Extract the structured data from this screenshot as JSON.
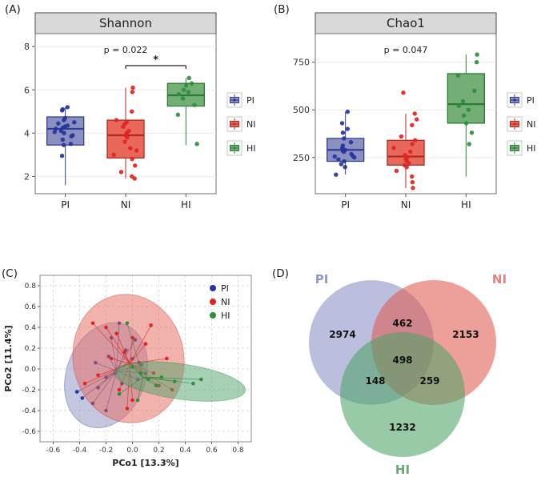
{
  "panels": {
    "A": {
      "label": "(A)"
    },
    "B": {
      "label": "(B)"
    },
    "C": {
      "label": "(C)"
    },
    "D": {
      "label": "(D)"
    }
  },
  "legend": {
    "items": [
      {
        "key": "PI",
        "label": "PI"
      },
      {
        "key": "NI",
        "label": "NI"
      },
      {
        "key": "HI",
        "label": "HI"
      }
    ]
  },
  "colors": {
    "PI": {
      "fill": "#8b90c1",
      "stroke": "#2f3e93",
      "point": "#26349c",
      "label": "#9197ca",
      "venn": "#8a90c4"
    },
    "NI": {
      "fill": "#e8685c",
      "stroke": "#b3281e",
      "point": "#e02421",
      "label": "#e0837c",
      "venn": "#e05a50"
    },
    "HI": {
      "fill": "#74ae77",
      "stroke": "#2b7c34",
      "point": "#2f8d3e",
      "label": "#6aa87b",
      "venn": "#4fa369"
    },
    "strip_bg": "#d9d9d9",
    "panel_border": "#6e6e6e",
    "grid": "#ececec"
  },
  "chart_data": [
    {
      "id": "A",
      "type": "box",
      "title": "Shannon",
      "p_text": "p = 0.022",
      "significance": {
        "from": "NI",
        "to": "HI",
        "label": "*"
      },
      "categories": [
        "PI",
        "NI",
        "HI"
      ],
      "ylim": [
        1.2,
        8.6
      ],
      "y_ticks": [
        2,
        4,
        6,
        8
      ],
      "stats": {
        "PI": {
          "whisker_low": 1.6,
          "q1": 3.45,
          "median": 4.2,
          "q3": 4.75,
          "whisker_high": 5.2
        },
        "NI": {
          "whisker_low": 1.9,
          "q1": 2.85,
          "median": 3.9,
          "q3": 4.6,
          "whisker_high": 6.1
        },
        "HI": {
          "whisker_low": 3.45,
          "q1": 5.25,
          "median": 5.75,
          "q3": 6.3,
          "whisker_high": 6.55
        }
      },
      "points": {
        "PI": [
          4.2,
          4.3,
          4.1,
          4.0,
          4.45,
          4.5,
          3.9,
          3.85,
          4.6,
          4.7,
          5.05,
          5.1,
          3.5,
          3.45,
          4.25,
          5.2,
          2.95,
          4.35,
          4.05,
          3.7
        ],
        "NI": [
          6.1,
          5.9,
          5.0,
          4.6,
          4.5,
          4.4,
          4.1,
          4.0,
          3.9,
          3.8,
          3.6,
          3.3,
          3.0,
          2.8,
          2.5,
          2.2,
          2.0,
          1.9,
          4.3,
          3.2
        ],
        "HI": [
          6.55,
          6.3,
          6.2,
          6.0,
          5.9,
          5.8,
          5.6,
          5.3,
          4.85,
          3.5
        ]
      }
    },
    {
      "id": "B",
      "type": "box",
      "title": "Chao1",
      "p_text": "p = 0.047",
      "significance": null,
      "categories": [
        "PI",
        "NI",
        "HI"
      ],
      "ylim": [
        60,
        900
      ],
      "y_ticks": [
        250,
        500,
        750
      ],
      "stats": {
        "PI": {
          "whisker_low": 160,
          "q1": 230,
          "median": 290,
          "q3": 350,
          "whisker_high": 490
        },
        "NI": {
          "whisker_low": 90,
          "q1": 210,
          "median": 255,
          "q3": 340,
          "whisker_high": 480
        },
        "HI": {
          "whisker_low": 150,
          "q1": 430,
          "median": 530,
          "q3": 690,
          "whisker_high": 790
        }
      },
      "points": {
        "PI": [
          160,
          200,
          215,
          230,
          240,
          250,
          258,
          268,
          280,
          290,
          300,
          312,
          330,
          350,
          380,
          400,
          430,
          490,
          255,
          285
        ],
        "NI": [
          90,
          120,
          150,
          180,
          200,
          210,
          220,
          232,
          242,
          252,
          262,
          280,
          300,
          320,
          340,
          360,
          420,
          480,
          590,
          450
        ],
        "HI": [
          320,
          380,
          430,
          470,
          500,
          520,
          545,
          600,
          680,
          790,
          750
        ]
      }
    },
    {
      "id": "C",
      "type": "scatter",
      "xlabel": "PCo1 [13.3%]",
      "ylabel": "PCo2 [11.4%]",
      "xlim": [
        -0.7,
        0.9
      ],
      "ylim": [
        -0.7,
        0.9
      ],
      "x_ticks": [
        -0.6,
        -0.4,
        -0.2,
        0.0,
        0.2,
        0.4,
        0.6,
        0.8
      ],
      "y_ticks": [
        -0.6,
        -0.4,
        -0.2,
        0.0,
        0.2,
        0.4,
        0.6,
        0.8
      ],
      "groups": [
        {
          "name": "PI",
          "centroid": [
            -0.12,
            -0.02
          ],
          "ellipse": {
            "cx": -0.2,
            "cy": -0.06,
            "rx": 0.3,
            "ry": 0.52,
            "angle": 20
          },
          "points": [
            [
              -0.38,
              -0.28
            ],
            [
              -0.3,
              -0.33
            ],
            [
              -0.26,
              -0.18
            ],
            [
              -0.2,
              -0.08
            ],
            [
              -0.28,
              0.06
            ],
            [
              -0.16,
              0.3
            ],
            [
              -0.1,
              0.44
            ],
            [
              -0.05,
              0.18
            ],
            [
              0.0,
              0.1
            ],
            [
              -0.13,
              -0.04
            ],
            [
              -0.08,
              -0.14
            ],
            [
              0.04,
              -0.1
            ],
            [
              0.1,
              -0.04
            ],
            [
              -0.42,
              -0.22
            ],
            [
              -0.18,
              0.12
            ],
            [
              0.02,
              0.28
            ],
            [
              -0.2,
              -0.4
            ],
            [
              0.07,
              0.04
            ]
          ]
        },
        {
          "name": "NI",
          "centroid": [
            -0.02,
            0.05
          ],
          "ellipse": {
            "cx": -0.03,
            "cy": 0.1,
            "rx": 0.42,
            "ry": 0.62,
            "angle": -10
          },
          "points": [
            [
              -0.3,
              0.44
            ],
            [
              -0.2,
              0.4
            ],
            [
              -0.12,
              0.34
            ],
            [
              0.0,
              0.3
            ],
            [
              0.1,
              0.24
            ],
            [
              -0.06,
              0.16
            ],
            [
              -0.16,
              0.1
            ],
            [
              0.05,
              0.06
            ],
            [
              0.16,
              -0.04
            ],
            [
              0.2,
              -0.16
            ],
            [
              -0.26,
              -0.06
            ],
            [
              -0.1,
              -0.2
            ],
            [
              0.0,
              -0.3
            ],
            [
              -0.36,
              -0.14
            ],
            [
              0.26,
              0.1
            ],
            [
              0.3,
              -0.2
            ],
            [
              -0.04,
              -0.38
            ],
            [
              0.14,
              0.42
            ]
          ]
        },
        {
          "name": "HI",
          "centroid": [
            0.08,
            -0.08
          ],
          "ellipse": {
            "cx": 0.36,
            "cy": -0.12,
            "rx": 0.5,
            "ry": 0.17,
            "angle": 8
          },
          "points": [
            [
              -0.04,
              0.44
            ],
            [
              0.0,
              0.02
            ],
            [
              0.06,
              -0.04
            ],
            [
              0.12,
              -0.1
            ],
            [
              0.18,
              -0.16
            ],
            [
              0.22,
              -0.08
            ],
            [
              0.32,
              -0.12
            ],
            [
              0.46,
              -0.14
            ],
            [
              0.52,
              -0.1
            ],
            [
              -0.1,
              -0.24
            ],
            [
              0.04,
              -0.3
            ]
          ]
        }
      ]
    },
    {
      "id": "D",
      "type": "venn",
      "sets": [
        "PI",
        "NI",
        "HI"
      ],
      "values": {
        "PI": 2974,
        "NI": 2153,
        "HI": 1232,
        "PI_NI": 462,
        "PI_HI": 148,
        "NI_HI": 259,
        "PI_NI_HI": 498
      }
    }
  ]
}
